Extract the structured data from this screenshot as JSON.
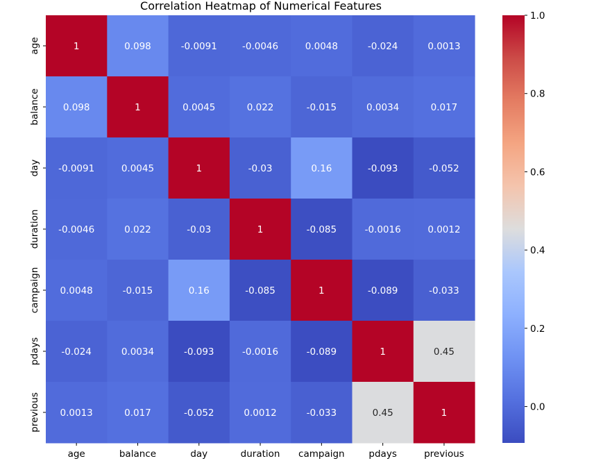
{
  "chart_data": {
    "type": "heatmap",
    "title": "Correlation Heatmap of Numerical Features",
    "xlabel": "",
    "ylabel": "",
    "x_labels": [
      "age",
      "balance",
      "day",
      "duration",
      "campaign",
      "pdays",
      "previous"
    ],
    "y_labels": [
      "age",
      "balance",
      "day",
      "duration",
      "campaign",
      "pdays",
      "previous"
    ],
    "matrix": [
      [
        1,
        0.098,
        -0.0091,
        -0.0046,
        0.0048,
        -0.024,
        0.0013
      ],
      [
        0.098,
        1,
        0.0045,
        0.022,
        -0.015,
        0.0034,
        0.017
      ],
      [
        -0.0091,
        0.0045,
        1,
        -0.03,
        0.16,
        -0.093,
        -0.052
      ],
      [
        -0.0046,
        0.022,
        -0.03,
        1,
        -0.085,
        -0.0016,
        0.0012
      ],
      [
        0.0048,
        -0.015,
        0.16,
        -0.085,
        1,
        -0.089,
        -0.033
      ],
      [
        -0.024,
        0.0034,
        -0.093,
        -0.0016,
        -0.089,
        1,
        0.45
      ],
      [
        0.0013,
        0.017,
        -0.052,
        0.0012,
        -0.033,
        0.45,
        1
      ]
    ],
    "annotations": [
      [
        "1",
        "0.098",
        "-0.0091",
        "-0.0046",
        "0.0048",
        "-0.024",
        "0.0013"
      ],
      [
        "0.098",
        "1",
        "0.0045",
        "0.022",
        "-0.015",
        "0.0034",
        "0.017"
      ],
      [
        "-0.0091",
        "0.0045",
        "1",
        "-0.03",
        "0.16",
        "-0.093",
        "-0.052"
      ],
      [
        "-0.0046",
        "0.022",
        "-0.03",
        "1",
        "-0.085",
        "-0.0016",
        "0.0012"
      ],
      [
        "0.0048",
        "-0.015",
        "0.16",
        "-0.085",
        "1",
        "-0.089",
        "-0.033"
      ],
      [
        "-0.024",
        "0.0034",
        "-0.093",
        "-0.0016",
        "-0.089",
        "1",
        "0.45"
      ],
      [
        "0.0013",
        "0.017",
        "-0.052",
        "0.0012",
        "-0.033",
        "0.45",
        "1"
      ]
    ],
    "colormap": "coolwarm",
    "vmin": -0.093,
    "vmax": 1,
    "colorbar": {
      "ticks": [
        0.0,
        0.2,
        0.4,
        0.6,
        0.8,
        1.0
      ],
      "tick_labels": [
        "0.0",
        "0.2",
        "0.4",
        "0.6",
        "0.8",
        "1.0"
      ],
      "placement": "right"
    },
    "grid": false,
    "legend": "none"
  }
}
